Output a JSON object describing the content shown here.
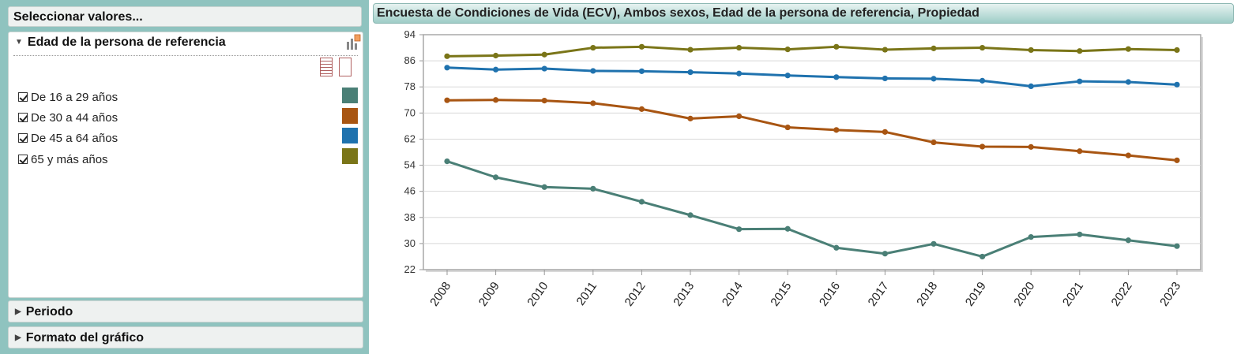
{
  "panel": {
    "select_title": "Seleccionar valores...",
    "sections": {
      "age": {
        "title": "Edad de la persona de referencia"
      },
      "period": {
        "title": "Periodo"
      },
      "format": {
        "title": "Formato del gráfico"
      }
    },
    "age_items": [
      {
        "label": "De 16 a 29 años",
        "checked": true,
        "color": "#4a7f76"
      },
      {
        "label": "De 30 a 44 años",
        "checked": true,
        "color": "#a85512"
      },
      {
        "label": "De 45 a 64 años",
        "checked": true,
        "color": "#1f72ae"
      },
      {
        "label": "65 y más años",
        "checked": true,
        "color": "#7a7518"
      }
    ]
  },
  "chart_title": "Encuesta de Condiciones de Vida (ECV), Ambos sexos, Edad de la persona de referencia, Propiedad",
  "chart_data": {
    "type": "line",
    "title": "Encuesta de Condiciones de Vida (ECV), Ambos sexos, Edad de la persona de referencia, Propiedad",
    "categories": [
      "2008",
      "2009",
      "2010",
      "2011",
      "2012",
      "2013",
      "2014",
      "2015",
      "2016",
      "2017",
      "2018",
      "2019",
      "2020",
      "2021",
      "2022",
      "2023"
    ],
    "ylim": [
      22,
      94
    ],
    "yticks": [
      22,
      30,
      38,
      46,
      54,
      62,
      70,
      78,
      86,
      94
    ],
    "grid": true,
    "series": [
      {
        "name": "De 16 a 29 años",
        "color": "#4a7f76",
        "values": [
          55.2,
          50.3,
          47.3,
          46.8,
          42.8,
          38.7,
          34.4,
          34.5,
          28.7,
          26.9,
          29.9,
          26.0,
          32.0,
          32.8,
          31.0,
          29.2
        ]
      },
      {
        "name": "De 30 a 44 años",
        "color": "#a85512",
        "values": [
          73.9,
          74.0,
          73.8,
          73.0,
          71.2,
          68.3,
          69.0,
          65.6,
          64.8,
          64.2,
          61.0,
          59.7,
          59.6,
          58.3,
          57.0,
          55.5
        ]
      },
      {
        "name": "De 45 a 64 años",
        "color": "#1f72ae",
        "values": [
          83.9,
          83.3,
          83.6,
          82.9,
          82.8,
          82.5,
          82.1,
          81.5,
          81.0,
          80.6,
          80.5,
          79.9,
          78.2,
          79.7,
          79.5,
          78.7
        ]
      },
      {
        "name": "65 y más años",
        "color": "#7a7518",
        "values": [
          87.4,
          87.6,
          87.9,
          90.0,
          90.3,
          89.4,
          90.0,
          89.5,
          90.3,
          89.4,
          89.8,
          90.0,
          89.3,
          89.0,
          89.6,
          89.3
        ]
      }
    ]
  }
}
